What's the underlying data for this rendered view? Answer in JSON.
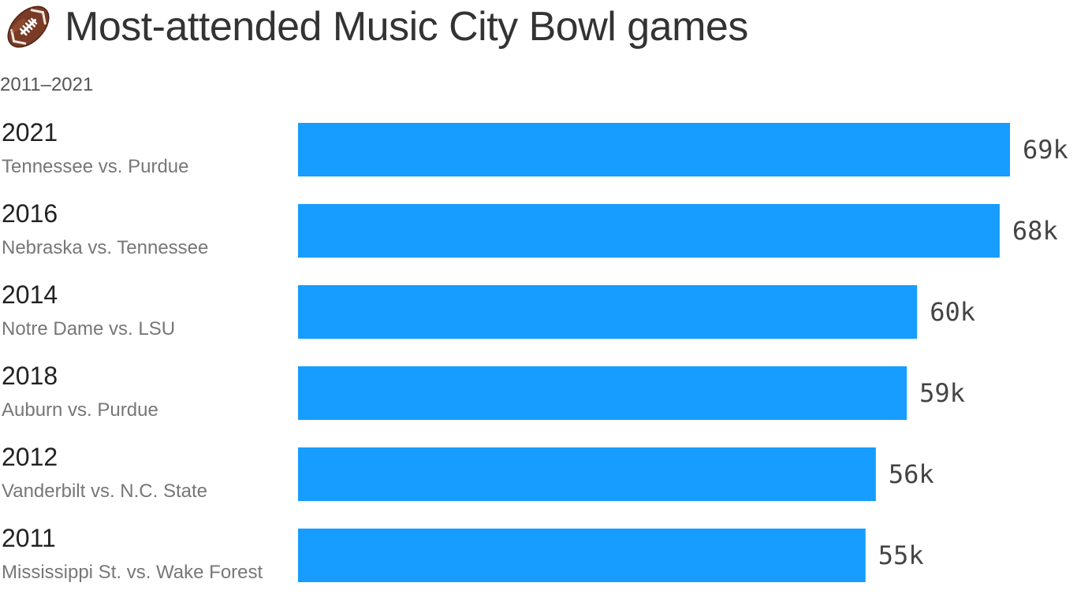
{
  "header": {
    "title": "Most-attended Music City Bowl games",
    "subtitle": "2011–2021",
    "icon": "american-football-icon"
  },
  "colors": {
    "bar": "#169DFF",
    "title": "#333333",
    "year": "#222222",
    "matchup": "#777777",
    "value": "#444444"
  },
  "chart_data": {
    "type": "bar",
    "orientation": "horizontal",
    "title": "Most-attended Music City Bowl games",
    "subtitle": "2011–2021",
    "categories": [
      "2021",
      "2016",
      "2014",
      "2018",
      "2012",
      "2011"
    ],
    "matchups": [
      "Tennessee vs. Purdue",
      "Nebraska vs. Tennessee",
      "Notre Dame vs. LSU",
      "Auburn vs. Purdue",
      "Vanderbilt vs. N.C. State",
      "Mississippi St. vs. Wake Forest"
    ],
    "values": [
      69,
      68,
      60,
      59,
      56,
      55
    ],
    "value_labels": [
      "69k",
      "68k",
      "60k",
      "59k",
      "56k",
      "55k"
    ],
    "unit": "k",
    "xlim": [
      0,
      69
    ],
    "grid": false,
    "legend": "none"
  }
}
